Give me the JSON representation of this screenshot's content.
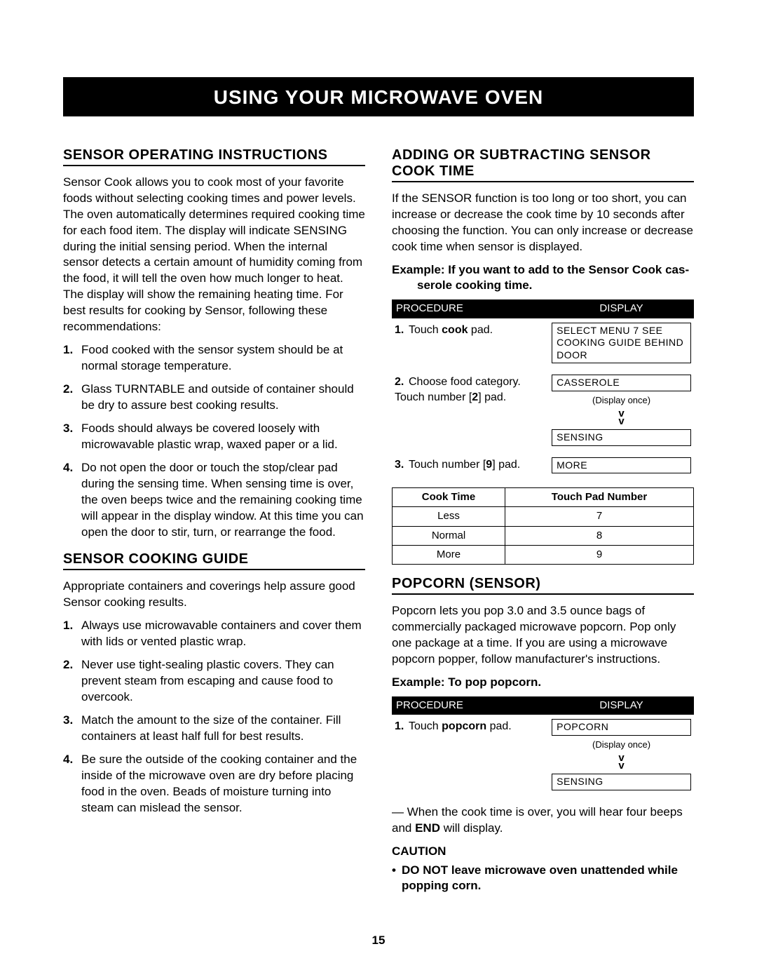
{
  "banner": "USING YOUR MICROWAVE OVEN",
  "page_number": "15",
  "left": {
    "h1": "SENSOR OPERATING INSTRUCTIONS",
    "intro": "Sensor Cook allows you to cook most of your favorite foods without selecting cooking times and power levels. The oven automatically determines required cooking time for each food item. The display will indicate SENSING during the initial sensing period. When the internal sensor detects a certain amount of humidity coming from the food, it will tell the oven how much longer to heat. The display will show the remaining heating time. For best results for cooking by Sensor, following these recommendations:",
    "list1": [
      "Food cooked with the sensor system should be at normal storage temperature.",
      "Glass TURNTABLE and outside of container should be dry to assure best cooking results.",
      "Foods should always be covered loosely with microwavable plastic wrap, waxed paper or a lid.",
      "Do not open the door or touch the stop/clear pad during the sensing time. When sensing time is over, the oven beeps twice and the remaining cooking time will appear in the display window. At this time you can open the door to stir, turn, or rearrange the food."
    ],
    "h2": "SENSOR COOKING GUIDE",
    "intro2": "Appropriate containers and coverings help assure good Sensor cooking results.",
    "list2": [
      "Always use microwavable containers and cover them with lids or vented plastic wrap.",
      "Never use tight-sealing plastic covers. They can prevent steam from escaping and cause food to overcook.",
      "Match the amount to the size of the container. Fill containers at least half full for best results.",
      "Be sure the outside of the cooking container and the inside of the microwave oven are dry before placing food in the oven. Beads of moisture turning into steam can mislead the sensor."
    ]
  },
  "right": {
    "h1": "ADDING OR SUBTRACTING SENSOR COOK TIME",
    "p1": "If the SENSOR function is too long or too short, you can increase or decrease the cook time by 10 seconds after choosing the function. You can only increase or decrease cook time when sensor is displayed.",
    "ex1a": "Example: If you want to add to the Sensor Cook cas-",
    "ex1b": "serole cooking time.",
    "proc_header": {
      "l": "PROCEDURE",
      "r": "DISPLAY"
    },
    "proc1": [
      {
        "n": "1.",
        "text_pre": "Touch ",
        "text_b": "cook",
        "text_post": " pad.",
        "displays": [
          "SELECT MENU     7 SEE COOKING   GUIDE BEHIND DOOR"
        ],
        "note": "",
        "displays2": []
      },
      {
        "n": "2.",
        "text_pre": "Choose food category. Touch number [",
        "text_b": "2",
        "text_post": "] pad.",
        "displays": [
          "CASSEROLE"
        ],
        "note": "(Display once)",
        "displays2": [
          "SENSING"
        ]
      },
      {
        "n": "3.",
        "text_pre": "Touch number [",
        "text_b": "9",
        "text_post": "] pad.",
        "displays": [
          "MORE"
        ],
        "note": "",
        "displays2": []
      }
    ],
    "grid_h": {
      "l": "Cook Time",
      "r": "Touch Pad Number"
    },
    "grid": [
      [
        "Less",
        "7"
      ],
      [
        "Normal",
        "8"
      ],
      [
        "More",
        "9"
      ]
    ],
    "h2": "POPCORN (SENSOR)",
    "p2": "Popcorn lets you pop 3.0 and 3.5 ounce bags of commercially packaged microwave popcorn. Pop only one package at a time. If you are using a microwave popcorn popper, follow manufacturer's instructions.",
    "ex2": "Example: To pop popcorn.",
    "proc2": [
      {
        "n": "1.",
        "text_pre": "Touch ",
        "text_b": "popcorn",
        "text_post": " pad.",
        "displays": [
          "POPCORN"
        ],
        "note": "(Display once)",
        "displays2": [
          "SENSING"
        ]
      }
    ],
    "after": "— When the cook time is over, you will hear four beeps and ",
    "after_b": "END",
    "after2": " will display.",
    "caution": "CAUTION",
    "caution_item": "DO NOT leave microwave oven unattended while popping corn."
  }
}
